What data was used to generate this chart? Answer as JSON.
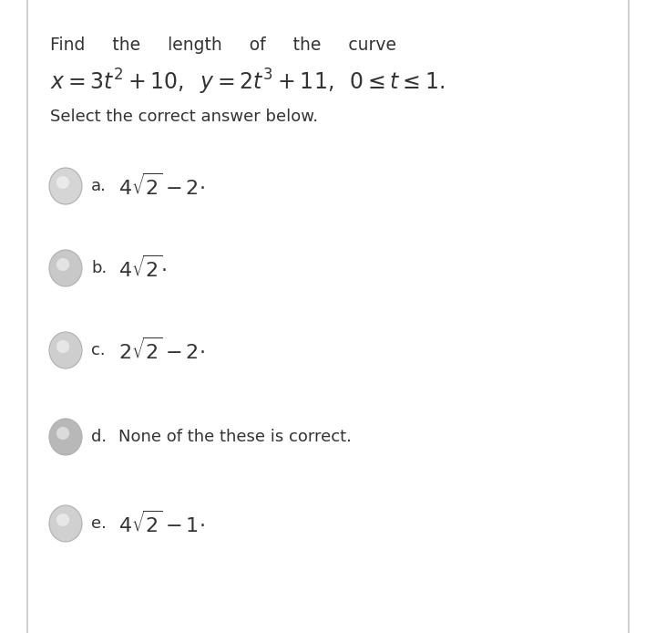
{
  "bg_color": "#ffffff",
  "panel_color": "#ffffff",
  "left_border_color": "#c8c8c8",
  "right_border_color": "#c8c8c8",
  "text_color": "#333333",
  "circle_fill_a": "#d8d8d8",
  "circle_fill_b": "#c8c8c8",
  "circle_fill_c": "#d0d0d0",
  "circle_fill_d": "#c0c0c0",
  "circle_fill_e": "#d0d0d0",
  "circle_edge": "#b8b8b8",
  "header_line1": "Find     the     length     of     the     curve",
  "header_line2": "$x = 3t^2 + 10,\\;\\; y = 2t^3 + 11,\\;\\; 0 \\leq t \\leq 1.$",
  "subheader": "Select the correct answer below.",
  "options": [
    {
      "label": "a.",
      "math": "$4\\sqrt{2} - 2$·",
      "circle_color": "#d5d5d5"
    },
    {
      "label": "b.",
      "math": "$4\\sqrt{2}$·",
      "circle_color": "#c8c8c8"
    },
    {
      "label": "c.",
      "math": "$2\\sqrt{2} - 2$·",
      "circle_color": "#cecece"
    },
    {
      "label": "d.",
      "text": "None of the these is correct.",
      "circle_color": "#b8b8b8"
    },
    {
      "label": "e.",
      "math": "$4\\sqrt{2} - 1$·",
      "circle_color": "#d0d0d0"
    }
  ],
  "figsize": [
    7.2,
    6.94
  ],
  "dpi": 100
}
